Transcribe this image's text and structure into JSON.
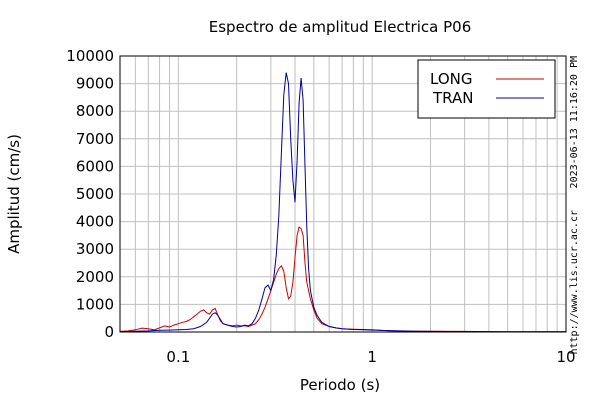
{
  "chart_data": {
    "type": "line",
    "title": "Espectro de amplitud Electrica P06",
    "xlabel": "Periodo (s)",
    "ylabel": "Amplitud (cm/s)",
    "x_scale": "log",
    "xlim": [
      0.05,
      10
    ],
    "ylim": [
      0,
      10000
    ],
    "x_tick_labels": [
      {
        "value": 0.1,
        "label": "0.1"
      },
      {
        "value": 1,
        "label": "1"
      },
      {
        "value": 10,
        "label": "10"
      }
    ],
    "y_ticks": [
      0,
      1000,
      2000,
      3000,
      4000,
      5000,
      6000,
      7000,
      8000,
      9000,
      10000
    ],
    "grid": true,
    "legend_position": "top-right",
    "series": [
      {
        "name": "LONG",
        "color": "#cc0000",
        "points": [
          [
            0.05,
            20
          ],
          [
            0.055,
            40
          ],
          [
            0.06,
            80
          ],
          [
            0.065,
            140
          ],
          [
            0.07,
            120
          ],
          [
            0.075,
            80
          ],
          [
            0.08,
            150
          ],
          [
            0.085,
            220
          ],
          [
            0.09,
            180
          ],
          [
            0.095,
            250
          ],
          [
            0.1,
            300
          ],
          [
            0.105,
            350
          ],
          [
            0.11,
            380
          ],
          [
            0.115,
            450
          ],
          [
            0.12,
            550
          ],
          [
            0.125,
            650
          ],
          [
            0.13,
            750
          ],
          [
            0.135,
            800
          ],
          [
            0.14,
            700
          ],
          [
            0.145,
            650
          ],
          [
            0.15,
            800
          ],
          [
            0.155,
            850
          ],
          [
            0.16,
            600
          ],
          [
            0.165,
            400
          ],
          [
            0.17,
            300
          ],
          [
            0.18,
            250
          ],
          [
            0.19,
            220
          ],
          [
            0.2,
            250
          ],
          [
            0.21,
            220
          ],
          [
            0.22,
            230
          ],
          [
            0.23,
            200
          ],
          [
            0.24,
            250
          ],
          [
            0.25,
            300
          ],
          [
            0.26,
            450
          ],
          [
            0.27,
            650
          ],
          [
            0.28,
            900
          ],
          [
            0.29,
            1200
          ],
          [
            0.3,
            1500
          ],
          [
            0.31,
            1800
          ],
          [
            0.32,
            2100
          ],
          [
            0.33,
            2300
          ],
          [
            0.34,
            2400
          ],
          [
            0.35,
            2200
          ],
          [
            0.36,
            1600
          ],
          [
            0.37,
            1200
          ],
          [
            0.38,
            1300
          ],
          [
            0.39,
            1800
          ],
          [
            0.4,
            2700
          ],
          [
            0.41,
            3500
          ],
          [
            0.42,
            3800
          ],
          [
            0.43,
            3750
          ],
          [
            0.44,
            3500
          ],
          [
            0.45,
            2500
          ],
          [
            0.46,
            1800
          ],
          [
            0.48,
            1200
          ],
          [
            0.5,
            800
          ],
          [
            0.52,
            500
          ],
          [
            0.55,
            300
          ],
          [
            0.6,
            200
          ],
          [
            0.65,
            150
          ],
          [
            0.7,
            120
          ],
          [
            0.8,
            100
          ],
          [
            0.9,
            90
          ],
          [
            1,
            80
          ],
          [
            1.1,
            60
          ],
          [
            1.2,
            50
          ],
          [
            1.3,
            40
          ],
          [
            1.5,
            30
          ],
          [
            2,
            25
          ],
          [
            3,
            20
          ],
          [
            4,
            15
          ],
          [
            5,
            12
          ],
          [
            7,
            10
          ],
          [
            10,
            8
          ]
        ]
      },
      {
        "name": "TRAN",
        "color": "#000099",
        "points": [
          [
            0.05,
            10
          ],
          [
            0.06,
            30
          ],
          [
            0.07,
            40
          ],
          [
            0.08,
            60
          ],
          [
            0.09,
            70
          ],
          [
            0.1,
            80
          ],
          [
            0.11,
            90
          ],
          [
            0.12,
            120
          ],
          [
            0.13,
            200
          ],
          [
            0.14,
            350
          ],
          [
            0.145,
            500
          ],
          [
            0.15,
            650
          ],
          [
            0.155,
            700
          ],
          [
            0.16,
            600
          ],
          [
            0.165,
            450
          ],
          [
            0.17,
            300
          ],
          [
            0.18,
            250
          ],
          [
            0.19,
            200
          ],
          [
            0.2,
            180
          ],
          [
            0.21,
            200
          ],
          [
            0.22,
            250
          ],
          [
            0.23,
            220
          ],
          [
            0.24,
            300
          ],
          [
            0.25,
            500
          ],
          [
            0.26,
            800
          ],
          [
            0.27,
            1200
          ],
          [
            0.28,
            1600
          ],
          [
            0.29,
            1700
          ],
          [
            0.3,
            1500
          ],
          [
            0.31,
            1900
          ],
          [
            0.32,
            2800
          ],
          [
            0.33,
            4200
          ],
          [
            0.34,
            6500
          ],
          [
            0.35,
            8600
          ],
          [
            0.36,
            9400
          ],
          [
            0.37,
            9000
          ],
          [
            0.38,
            7000
          ],
          [
            0.39,
            5500
          ],
          [
            0.4,
            4700
          ],
          [
            0.41,
            6200
          ],
          [
            0.42,
            8300
          ],
          [
            0.43,
            9200
          ],
          [
            0.44,
            8400
          ],
          [
            0.45,
            6000
          ],
          [
            0.46,
            3800
          ],
          [
            0.47,
            2300
          ],
          [
            0.48,
            1500
          ],
          [
            0.5,
            900
          ],
          [
            0.52,
            600
          ],
          [
            0.55,
            350
          ],
          [
            0.6,
            200
          ],
          [
            0.65,
            150
          ],
          [
            0.7,
            120
          ],
          [
            0.8,
            90
          ],
          [
            0.9,
            80
          ],
          [
            1,
            70
          ],
          [
            1.2,
            50
          ],
          [
            1.4,
            40
          ],
          [
            1.7,
            30
          ],
          [
            2,
            20
          ],
          [
            3,
            15
          ],
          [
            5,
            10
          ],
          [
            7,
            8
          ],
          [
            10,
            6
          ]
        ]
      }
    ]
  },
  "side_labels": {
    "timestamp": "2023-06-13 11:16:20 PM",
    "url": "http://www.lis.ucr.ac.cr"
  }
}
